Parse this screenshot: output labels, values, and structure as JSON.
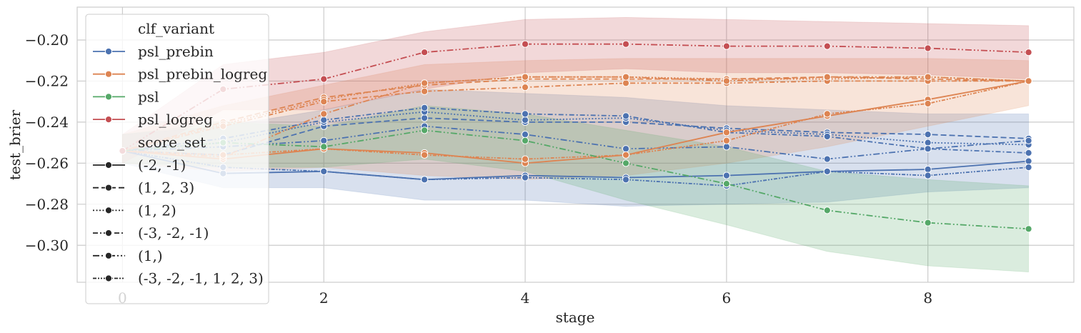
{
  "chart_data": {
    "type": "line",
    "xlabel": "stage",
    "ylabel": "test_brier",
    "xlim": [
      -0.45,
      9.45
    ],
    "ylim": [
      -0.318,
      -0.184
    ],
    "xticks": [
      0,
      2,
      4,
      6,
      8
    ],
    "xtick_labels": [
      "0",
      "2",
      "4",
      "6",
      "8"
    ],
    "yticks": [
      -0.3,
      -0.28,
      -0.26,
      -0.24,
      -0.22,
      -0.2
    ],
    "ytick_labels": [
      "−0.30",
      "−0.28",
      "−0.26",
      "−0.24",
      "−0.22",
      "−0.20"
    ],
    "grid": true,
    "legend": {
      "placement": "upper-left",
      "hue_title": "clf_variant",
      "hue_entries": [
        {
          "label": "psl_prebin",
          "color": "#4c72b0"
        },
        {
          "label": "psl_prebin_logreg",
          "color": "#dd8452"
        },
        {
          "label": "psl",
          "color": "#55a868"
        },
        {
          "label": "psl_logreg",
          "color": "#c44e52"
        }
      ],
      "style_title": "score_set",
      "style_entries": [
        {
          "label": "(-2, -1)",
          "dash": "solid"
        },
        {
          "label": "(1, 2, 3)",
          "dash": "dashed"
        },
        {
          "label": "(1, 2)",
          "dash": "dotted"
        },
        {
          "label": "(-3, -2, -1)",
          "dash": "dashdot-a"
        },
        {
          "label": "(1,)",
          "dash": "dashdot-b"
        },
        {
          "label": "(-3, -2, -1, 1, 2, 3)",
          "dash": "dashdot-c"
        }
      ]
    },
    "x": [
      0,
      1,
      2,
      3,
      4,
      5,
      6,
      7,
      8,
      9
    ],
    "series": [
      {
        "hue": "psl_prebin",
        "style": "(-2, -1)",
        "values": [
          -0.254,
          -0.265,
          -0.264,
          -0.268,
          -0.266,
          -0.267,
          -0.266,
          -0.264,
          -0.263,
          -0.259
        ]
      },
      {
        "hue": "psl_prebin",
        "style": "(1, 2, 3)",
        "values": [
          -0.254,
          -0.256,
          -0.242,
          -0.238,
          -0.24,
          -0.24,
          -0.243,
          -0.245,
          -0.246,
          -0.248
        ]
      },
      {
        "hue": "psl_prebin",
        "style": "(1, 2)",
        "values": [
          -0.254,
          -0.25,
          -0.24,
          -0.235,
          -0.239,
          -0.238,
          -0.244,
          -0.246,
          -0.25,
          -0.251
        ]
      },
      {
        "hue": "psl_prebin",
        "style": "(-3, -2, -1)",
        "values": [
          -0.254,
          -0.248,
          -0.239,
          -0.233,
          -0.236,
          -0.237,
          -0.245,
          -0.247,
          -0.253,
          -0.255
        ]
      },
      {
        "hue": "psl_prebin",
        "style": "(1,)",
        "values": [
          -0.254,
          -0.252,
          -0.249,
          -0.242,
          -0.246,
          -0.253,
          -0.252,
          -0.258,
          -0.253,
          -0.249
        ]
      },
      {
        "hue": "psl_prebin",
        "style": "(-3, -2, -1, 1, 2, 3)",
        "values": [
          -0.254,
          -0.262,
          -0.264,
          -0.268,
          -0.267,
          -0.268,
          -0.271,
          -0.264,
          -0.266,
          -0.262
        ]
      },
      {
        "hue": "psl_prebin_logreg",
        "style": "(-2, -1)",
        "values": [
          -0.254,
          -0.258,
          -0.253,
          -0.255,
          -0.26,
          -0.256,
          -0.245,
          -0.237,
          -0.229,
          -0.22
        ]
      },
      {
        "hue": "psl_prebin_logreg",
        "style": "(1, 2, 3)",
        "values": [
          -0.254,
          -0.24,
          -0.228,
          -0.222,
          -0.219,
          -0.219,
          -0.219,
          -0.218,
          -0.219,
          -0.22
        ]
      },
      {
        "hue": "psl_prebin_logreg",
        "style": "(1, 2)",
        "values": [
          -0.254,
          -0.241,
          -0.229,
          -0.221,
          -0.218,
          -0.218,
          -0.219,
          -0.219,
          -0.218,
          -0.22
        ]
      },
      {
        "hue": "psl_prebin_logreg",
        "style": "(-3, -2, -1)",
        "values": [
          -0.254,
          -0.242,
          -0.23,
          -0.225,
          -0.223,
          -0.221,
          -0.221,
          -0.22,
          -0.22,
          -0.22
        ]
      },
      {
        "hue": "psl_prebin_logreg",
        "style": "(1,)",
        "values": [
          -0.254,
          -0.257,
          -0.236,
          -0.221,
          -0.218,
          -0.218,
          -0.22,
          -0.218,
          -0.218,
          -0.22
        ]
      },
      {
        "hue": "psl_prebin_logreg",
        "style": "(-3, -2, -1, 1, 2, 3)",
        "values": [
          -0.254,
          -0.256,
          -0.253,
          -0.256,
          -0.258,
          -0.256,
          -0.249,
          -0.236,
          -0.231,
          -0.22
        ]
      },
      {
        "hue": "psl",
        "style": "(1,)",
        "values": [
          -0.254,
          -0.25,
          -0.252,
          -0.244,
          -0.249,
          -0.26,
          -0.27,
          -0.283,
          -0.289,
          -0.292
        ]
      },
      {
        "hue": "psl_logreg",
        "style": "(1,)",
        "values": [
          -0.254,
          -0.224,
          -0.219,
          -0.206,
          -0.202,
          -0.202,
          -0.203,
          -0.203,
          -0.204,
          -0.206
        ]
      }
    ],
    "bands": [
      {
        "hue": "psl_prebin",
        "lower": [
          -0.26,
          -0.272,
          -0.272,
          -0.278,
          -0.278,
          -0.281,
          -0.28,
          -0.279,
          -0.274,
          -0.272
        ],
        "upper": [
          -0.246,
          -0.242,
          -0.234,
          -0.224,
          -0.226,
          -0.228,
          -0.232,
          -0.234,
          -0.236,
          -0.236
        ]
      },
      {
        "hue": "psl_prebin_logreg",
        "lower": [
          -0.26,
          -0.264,
          -0.262,
          -0.266,
          -0.268,
          -0.266,
          -0.26,
          -0.252,
          -0.242,
          -0.232
        ],
        "upper": [
          -0.246,
          -0.232,
          -0.222,
          -0.212,
          -0.21,
          -0.209,
          -0.209,
          -0.209,
          -0.209,
          -0.21
        ]
      },
      {
        "hue": "psl",
        "lower": [
          -0.26,
          -0.262,
          -0.262,
          -0.258,
          -0.264,
          -0.278,
          -0.29,
          -0.303,
          -0.31,
          -0.313
        ]
      },
      {
        "hue": "psl",
        "upper": [
          -0.246,
          -0.24,
          -0.242,
          -0.232,
          -0.236,
          -0.244,
          -0.252,
          -0.264,
          -0.268,
          -0.271
        ]
      },
      {
        "hue": "psl_logreg",
        "lower": [
          -0.26,
          -0.234,
          -0.234,
          -0.224,
          -0.216,
          -0.214,
          -0.216,
          -0.216,
          -0.217,
          -0.219
        ],
        "upper": [
          -0.246,
          -0.212,
          -0.206,
          -0.196,
          -0.19,
          -0.189,
          -0.19,
          -0.191,
          -0.192,
          -0.193
        ]
      }
    ]
  }
}
